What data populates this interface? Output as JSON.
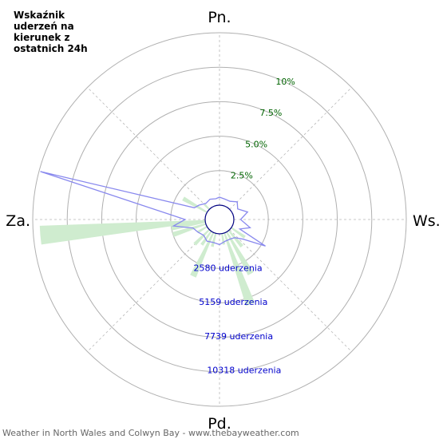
{
  "title": "Wskaźnik uderzeń na kierunek z ostatnich 24h",
  "footer": "Weather in North Wales and Colwyn Bay - www.thebayweather.com",
  "chart_data": {
    "type": "polar",
    "directions": {
      "north": "Pn.",
      "east": "Ws.",
      "south": "Pd.",
      "west": "Za."
    },
    "percent_ticks": [
      {
        "value": 2.5,
        "label": "2.5%"
      },
      {
        "value": 5.0,
        "label": "5.0%"
      },
      {
        "value": 7.5,
        "label": "7.5%"
      },
      {
        "value": 10.0,
        "label": "10%"
      }
    ],
    "count_ticks": [
      {
        "value": 2580,
        "label": "2580 uderzenia"
      },
      {
        "value": 5159,
        "label": "5159 uderzenia"
      },
      {
        "value": 7739,
        "label": "7739 uderzenia"
      },
      {
        "value": 10318,
        "label": "10318 uderzenia"
      }
    ],
    "percent_max": 12.5,
    "count_max": 12898,
    "bar_color": "#cfeccf",
    "line_color": "#8888ee",
    "bars_percent": [
      {
        "deg": 265,
        "value": 12.0
      },
      {
        "deg": 260,
        "value": 2.5
      },
      {
        "deg": 252,
        "value": 2.5
      },
      {
        "deg": 240,
        "value": 0.8
      },
      {
        "deg": 225,
        "value": 1.5
      },
      {
        "deg": 215,
        "value": 1.2
      },
      {
        "deg": 205,
        "value": 3.5
      },
      {
        "deg": 195,
        "value": 1.0
      },
      {
        "deg": 170,
        "value": 0.8
      },
      {
        "deg": 160,
        "value": 5.5
      },
      {
        "deg": 150,
        "value": 3.5
      },
      {
        "deg": 140,
        "value": 1.5
      },
      {
        "deg": 125,
        "value": 1.2
      },
      {
        "deg": 300,
        "value": 2.0
      },
      {
        "deg": 315,
        "value": 0.5
      }
    ],
    "line_counts": [
      {
        "deg": 0,
        "value": 600
      },
      {
        "deg": 15,
        "value": 500
      },
      {
        "deg": 30,
        "value": 500
      },
      {
        "deg": 45,
        "value": 800
      },
      {
        "deg": 60,
        "value": 500
      },
      {
        "deg": 75,
        "value": 1100
      },
      {
        "deg": 90,
        "value": 500
      },
      {
        "deg": 105,
        "value": 1300
      },
      {
        "deg": 115,
        "value": 600
      },
      {
        "deg": 120,
        "value": 2900
      },
      {
        "deg": 130,
        "value": 1200
      },
      {
        "deg": 140,
        "value": 700
      },
      {
        "deg": 150,
        "value": 600
      },
      {
        "deg": 165,
        "value": 600
      },
      {
        "deg": 180,
        "value": 800
      },
      {
        "deg": 195,
        "value": 700
      },
      {
        "deg": 210,
        "value": 800
      },
      {
        "deg": 225,
        "value": 600
      },
      {
        "deg": 240,
        "value": 800
      },
      {
        "deg": 252,
        "value": 1000
      },
      {
        "deg": 262,
        "value": 2400
      },
      {
        "deg": 270,
        "value": 1500
      },
      {
        "deg": 285,
        "value": 12800
      },
      {
        "deg": 295,
        "value": 1000
      },
      {
        "deg": 305,
        "value": 800
      },
      {
        "deg": 320,
        "value": 500
      },
      {
        "deg": 335,
        "value": 600
      },
      {
        "deg": 350,
        "value": 500
      }
    ]
  }
}
